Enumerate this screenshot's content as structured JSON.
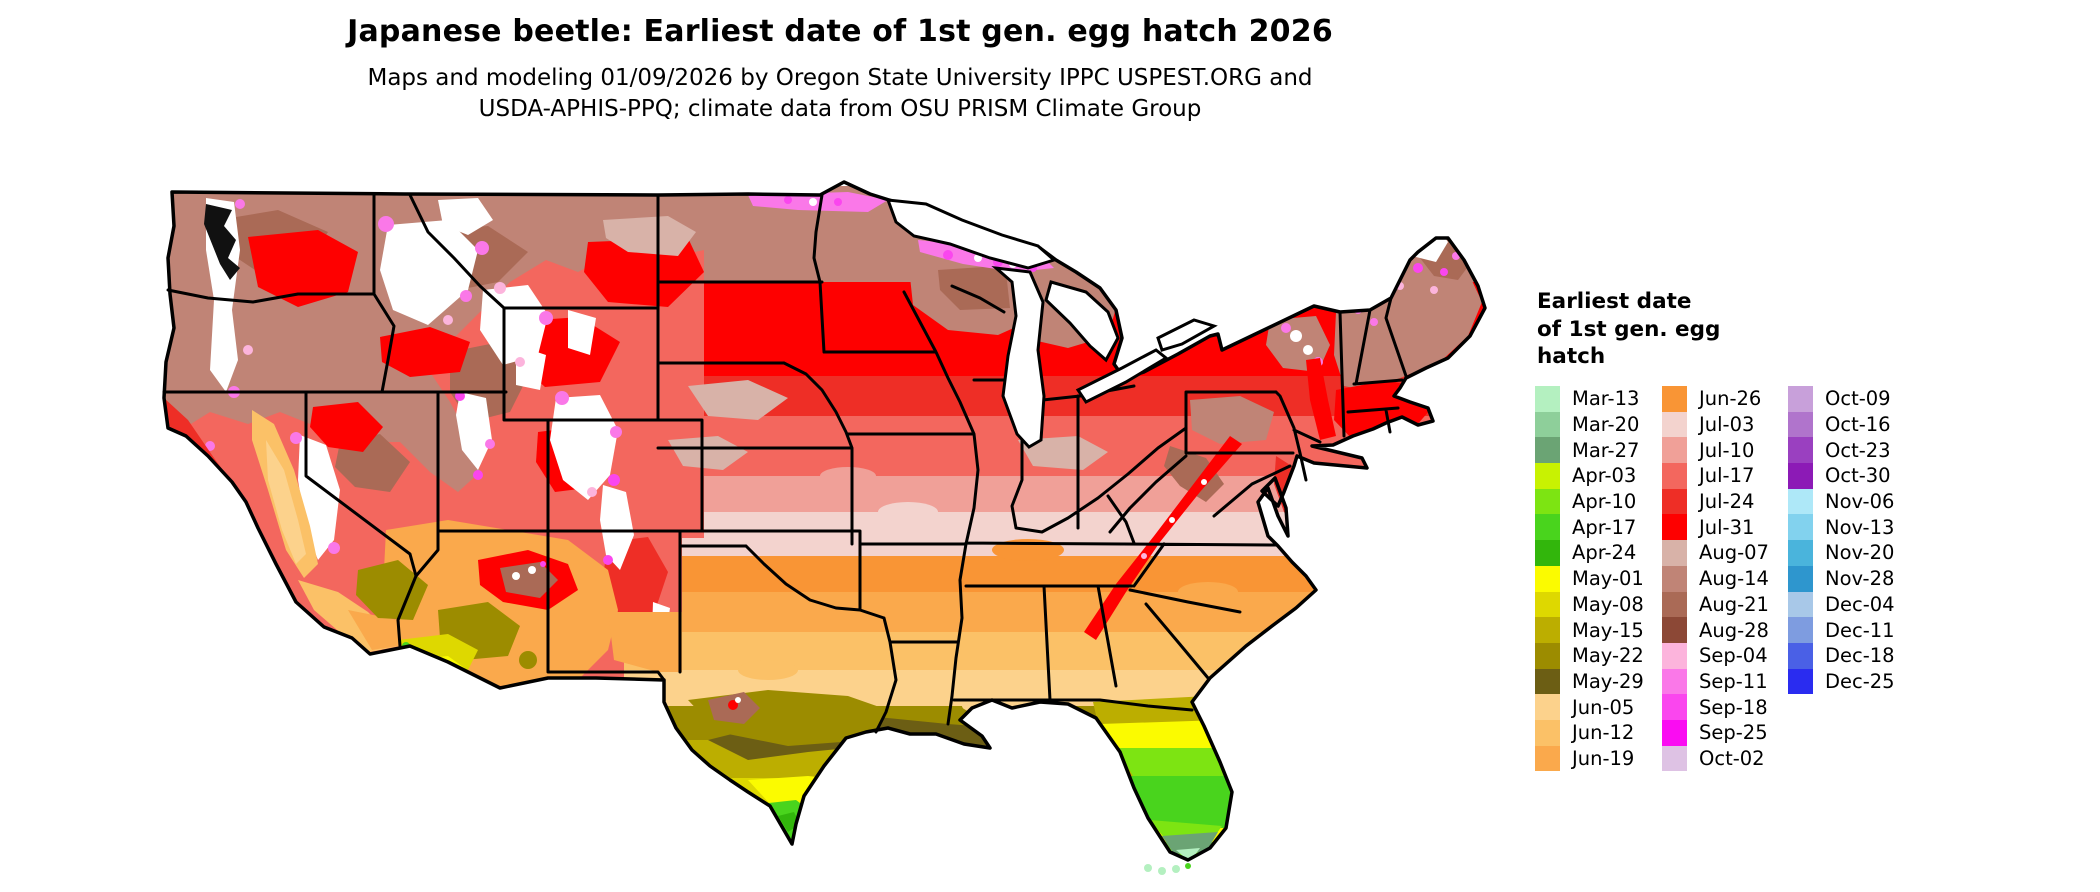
{
  "title": "Japanese beetle: Earliest date of 1st gen. egg hatch 2026",
  "subtitle_line1": "Maps and modeling 01/09/2026 by Oregon State University IPPC USPEST.ORG and",
  "subtitle_line2": "USDA-APHIS-PPQ; climate data from OSU PRISM Climate Group",
  "legend": {
    "title_lines": [
      "Earliest date",
      "of 1st gen. egg",
      "hatch"
    ],
    "columns": [
      [
        {
          "label": "Mar-13",
          "color": "#b4f0c0"
        },
        {
          "label": "Mar-20",
          "color": "#8ecf9a"
        },
        {
          "label": "Mar-27",
          "color": "#6ba474"
        },
        {
          "label": "Apr-03",
          "color": "#c8f202"
        },
        {
          "label": "Apr-10",
          "color": "#7de412"
        },
        {
          "label": "Apr-17",
          "color": "#49d41d"
        },
        {
          "label": "Apr-24",
          "color": "#32b60c"
        },
        {
          "label": "May-01",
          "color": "#fbfb00"
        },
        {
          "label": "May-08",
          "color": "#ded800"
        },
        {
          "label": "May-15",
          "color": "#bcae00"
        },
        {
          "label": "May-22",
          "color": "#9c8c00"
        },
        {
          "label": "May-29",
          "color": "#6c5e14"
        },
        {
          "label": "Jun-05",
          "color": "#fcd28c"
        },
        {
          "label": "Jun-12",
          "color": "#fbc167"
        },
        {
          "label": "Jun-19",
          "color": "#faa94c"
        }
      ],
      [
        {
          "label": "Jun-26",
          "color": "#f99535"
        },
        {
          "label": "Jul-03",
          "color": "#f3d3ce"
        },
        {
          "label": "Jul-10",
          "color": "#f0a098"
        },
        {
          "label": "Jul-17",
          "color": "#f3675e"
        },
        {
          "label": "Jul-24",
          "color": "#ee2e26"
        },
        {
          "label": "Jul-31",
          "color": "#fe0000"
        },
        {
          "label": "Aug-07",
          "color": "#d8b2a8"
        },
        {
          "label": "Aug-14",
          "color": "#c08476"
        },
        {
          "label": "Aug-21",
          "color": "#aa6a56"
        },
        {
          "label": "Aug-28",
          "color": "#8c4836"
        },
        {
          "label": "Sep-04",
          "color": "#fcb4dc"
        },
        {
          "label": "Sep-11",
          "color": "#fa78e8"
        },
        {
          "label": "Sep-18",
          "color": "#fa46ee"
        },
        {
          "label": "Sep-25",
          "color": "#fa0cf2"
        },
        {
          "label": "Oct-02",
          "color": "#dec2e4"
        }
      ],
      [
        {
          "label": "Oct-09",
          "color": "#c8a0da"
        },
        {
          "label": "Oct-16",
          "color": "#b074cc"
        },
        {
          "label": "Oct-23",
          "color": "#9a40c0"
        },
        {
          "label": "Oct-30",
          "color": "#8c1ab6"
        },
        {
          "label": "Nov-06",
          "color": "#aee8f8"
        },
        {
          "label": "Nov-13",
          "color": "#82d2ee"
        },
        {
          "label": "Nov-20",
          "color": "#4ab4dc"
        },
        {
          "label": "Nov-28",
          "color": "#2e96ce"
        },
        {
          "label": "Dec-04",
          "color": "#a8c8e8"
        },
        {
          "label": "Dec-11",
          "color": "#7e9ce0"
        },
        {
          "label": "Dec-18",
          "color": "#4a60e6"
        },
        {
          "label": "Dec-25",
          "color": "#2a2cf0"
        }
      ]
    ]
  },
  "map": {
    "no_data_color": "#ffffff",
    "water_color": "#ffffff",
    "border_color": "#000000",
    "coast_detail_color": "#111111"
  }
}
